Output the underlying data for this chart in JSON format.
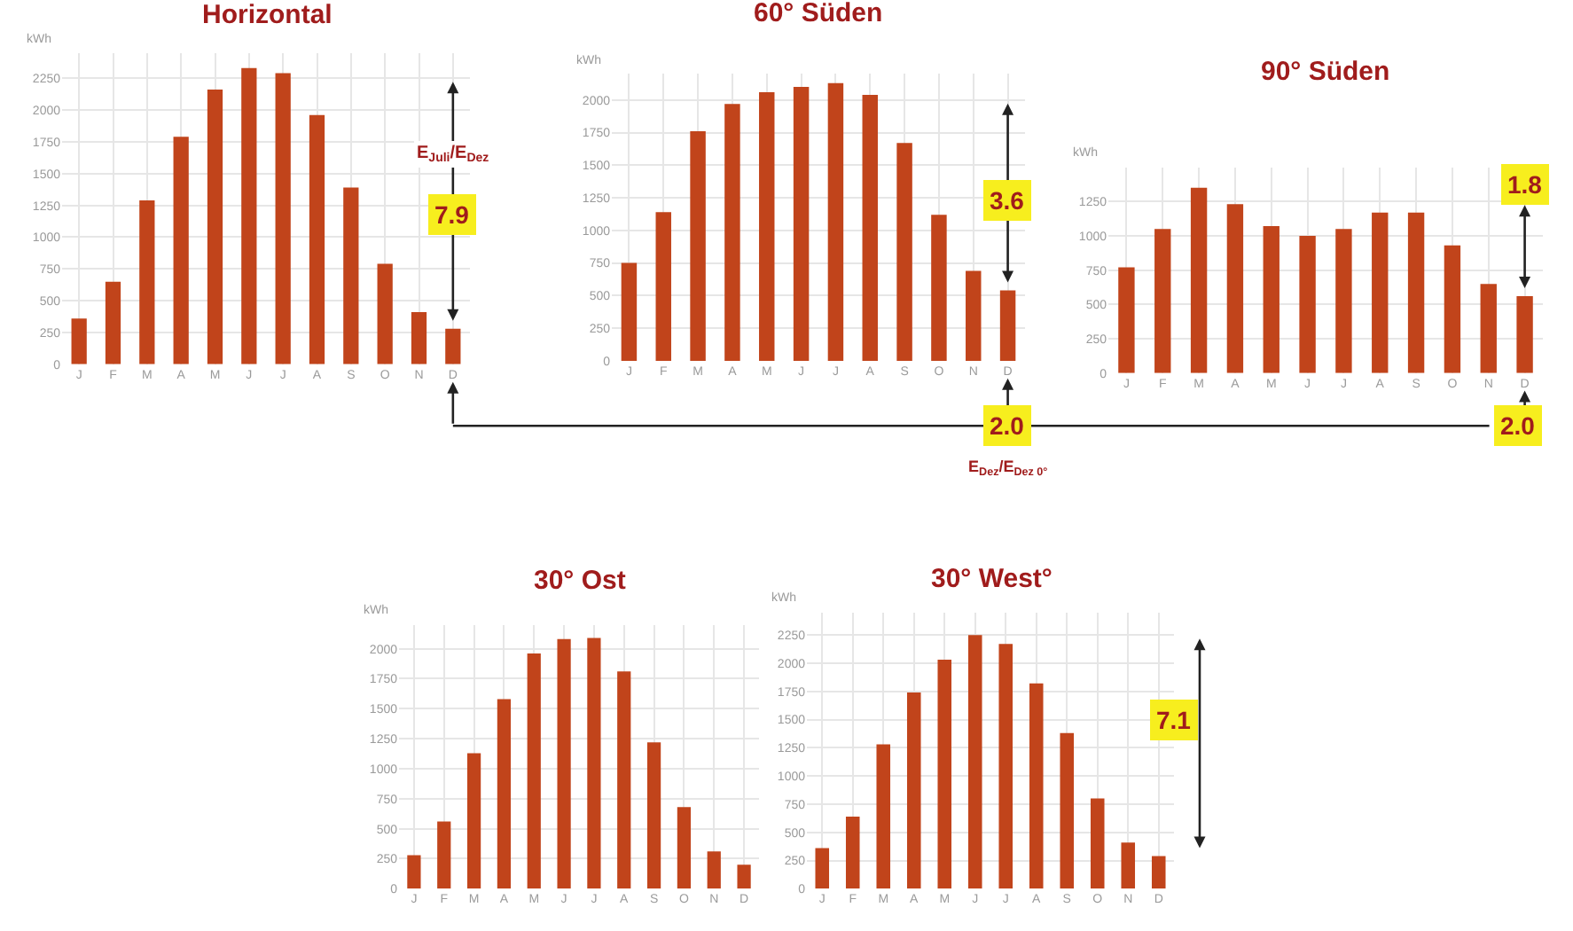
{
  "chart_data": [
    {
      "type": "bar",
      "title": "Horizontal",
      "ylabel": "kWh",
      "categories": [
        "J",
        "F",
        "M",
        "A",
        "M",
        "J",
        "J",
        "A",
        "S",
        "O",
        "N",
        "D"
      ],
      "color": "#c1441b",
      "values": [
        360,
        650,
        1290,
        1790,
        2160,
        2330,
        2290,
        1960,
        1390,
        790,
        410,
        280
      ],
      "ylim": [
        0,
        2450
      ],
      "yticks": [
        0,
        250,
        500,
        750,
        1000,
        1250,
        1500,
        1750,
        2000,
        2250
      ],
      "grid": true,
      "annotations": [
        "E$_{Juli}$/E$_{Dez}$",
        "7.9"
      ]
    },
    {
      "type": "bar",
      "title": "60° Süden",
      "ylabel": "kWh",
      "categories": [
        "J",
        "F",
        "M",
        "A",
        "M",
        "J",
        "J",
        "A",
        "S",
        "O",
        "N",
        "D"
      ],
      "color": "#c1441b",
      "values": [
        750,
        1140,
        1760,
        1970,
        2060,
        2100,
        2130,
        2040,
        1670,
        1120,
        690,
        540
      ],
      "ylim": [
        0,
        2200
      ],
      "yticks": [
        0,
        250,
        500,
        750,
        1000,
        1250,
        1500,
        1750,
        2000
      ],
      "grid": true,
      "annotations": [
        "3.6",
        "2.0",
        "E$_{Dez}$/E$_{Dez 0°}$"
      ]
    },
    {
      "type": "bar",
      "title": "90° Süden",
      "ylabel": "kWh",
      "categories": [
        "J",
        "F",
        "M",
        "A",
        "M",
        "J",
        "J",
        "A",
        "S",
        "O",
        "N",
        "D"
      ],
      "color": "#c1441b",
      "values": [
        770,
        1050,
        1350,
        1230,
        1070,
        1000,
        1050,
        1170,
        1170,
        930,
        650,
        560
      ],
      "ylim": [
        0,
        1500
      ],
      "yticks": [
        0,
        250,
        500,
        750,
        1000,
        1250
      ],
      "grid": true,
      "annotations": [
        {
          "text": "1.8",
          "y": 560
        },
        "2.0"
      ]
    },
    {
      "type": "bar",
      "title": "30° Ost",
      "ylabel": "kWh",
      "categories": [
        "J",
        "F",
        "M",
        "A",
        "M",
        "J",
        "J",
        "A",
        "S",
        "O",
        "N",
        "D"
      ],
      "color": "#c1441b",
      "values": [
        280,
        560,
        1130,
        1580,
        1960,
        2080,
        2090,
        1810,
        1220,
        680,
        310,
        200
      ],
      "ylim": [
        0,
        2200
      ],
      "yticks": [
        0,
        250,
        500,
        750,
        1000,
        1250,
        1500,
        1750,
        2000
      ],
      "grid": true
    },
    {
      "type": "bar",
      "title": "30° West°",
      "ylabel": "kWh",
      "categories": [
        "J",
        "F",
        "M",
        "A",
        "M",
        "J",
        "J",
        "A",
        "S",
        "O",
        "N",
        "D"
      ],
      "color": "#c1441b",
      "values": [
        360,
        640,
        1280,
        1740,
        2030,
        2250,
        2170,
        1820,
        1380,
        800,
        410,
        290
      ],
      "ylim": [
        0,
        2450
      ],
      "yticks": [
        0,
        250,
        500,
        750,
        1000,
        1250,
        1500,
        1750,
        2000,
        2250
      ],
      "grid": true,
      "annotations": [
        "7.1"
      ]
    }
  ]
}
